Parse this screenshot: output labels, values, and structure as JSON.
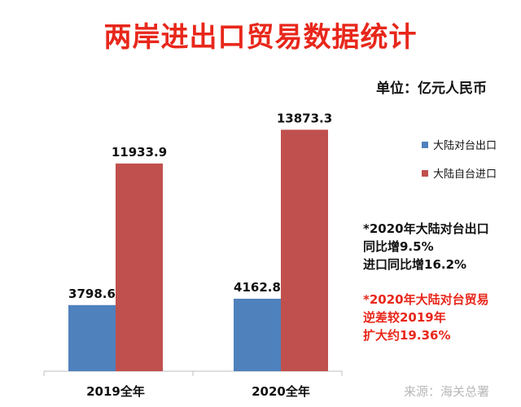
{
  "title": "两岸进出口贸易数据统计",
  "unit": "单位：亿元人民币",
  "legend": [
    {
      "label": "大陆对台出口",
      "color": "#4f81bd"
    },
    {
      "label": "大陆自台进口",
      "color": "#c0504d"
    }
  ],
  "notes": {
    "black": [
      "*2020年大陆对台出口",
      "同比增9.5%",
      "进口同比增16.2%"
    ],
    "red": [
      "*2020年大陆对台贸易",
      "逆差较2019年",
      "扩大约19.36%"
    ]
  },
  "source": "来源：海关总署",
  "chart_data": {
    "type": "bar",
    "categories": [
      "2019全年",
      "2020全年"
    ],
    "series": [
      {
        "name": "大陆对台出口",
        "values": [
          3798.6,
          4162.8
        ],
        "color": "#4f81bd"
      },
      {
        "name": "大陆自台进口",
        "values": [
          11933.9,
          13873.3
        ],
        "color": "#c0504d"
      }
    ],
    "data_labels": [
      "3798.6",
      "4162.8",
      "11933.9",
      "13873.3"
    ],
    "ylim": [
      0,
      14500
    ],
    "grid": false,
    "legend_position": "right"
  }
}
